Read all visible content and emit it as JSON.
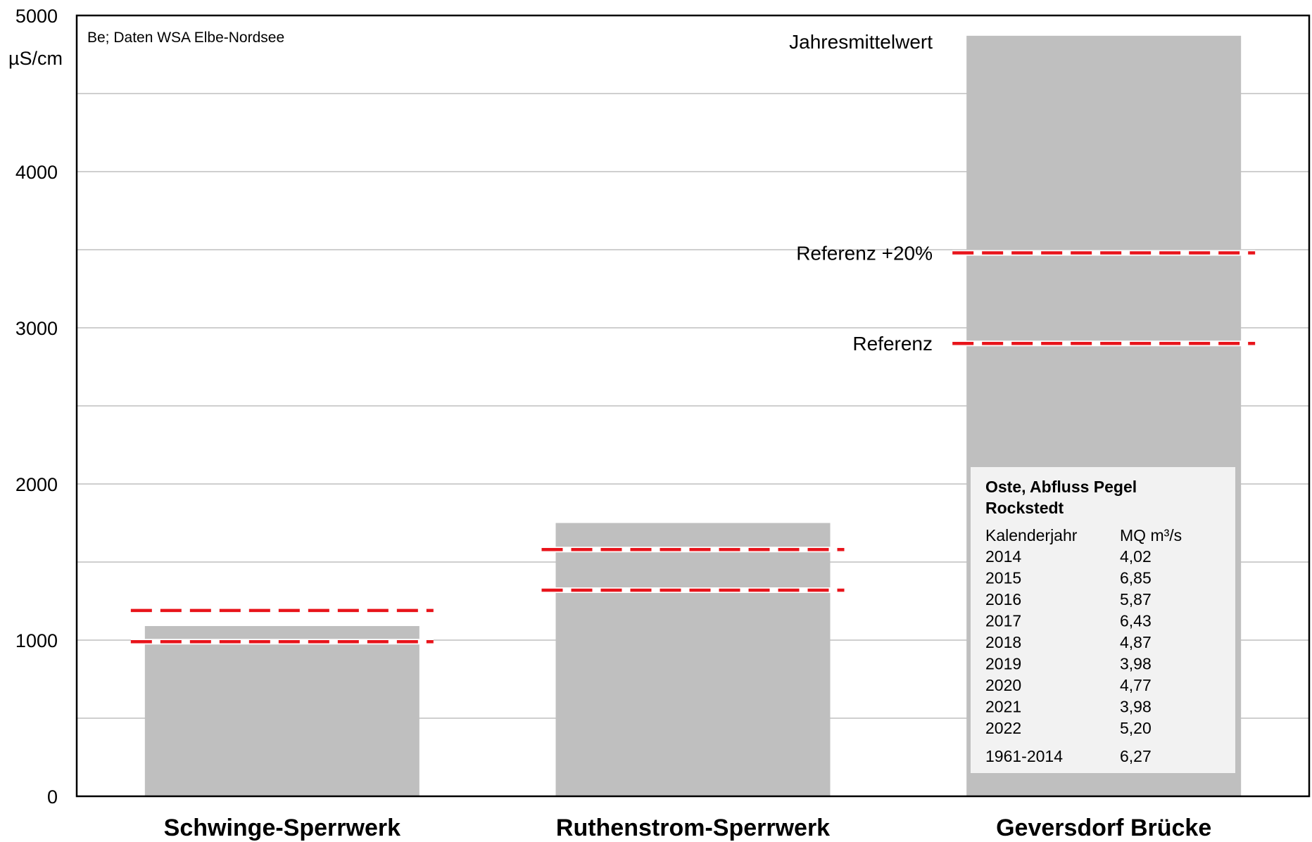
{
  "chart_data": {
    "type": "bar",
    "y_unit": "µS/cm",
    "ylim": [
      0,
      5000
    ],
    "y_ticks": [
      "0",
      "1000",
      "2000",
      "3000",
      "4000",
      "5000"
    ],
    "grid": true,
    "source_note": "Be; Daten WSA Elbe-Nordsee",
    "categories": [
      "Schwinge-Sperrwerk",
      "Ruthenstrom-Sperrwerk",
      "Geversdorf Brücke"
    ],
    "series": [
      {
        "name": "Jahresmittelwert",
        "values": [
          1090,
          1750,
          4870
        ]
      }
    ],
    "reference_lines": [
      {
        "name": "Referenz",
        "values": [
          990,
          1320,
          2900
        ]
      },
      {
        "name": "Referenz +20%",
        "values": [
          1190,
          1580,
          3480
        ]
      }
    ],
    "labels": {
      "series": "Jahresmittelwert",
      "ref": "Referenz",
      "ref20": "Referenz +20%"
    },
    "colors": {
      "bar": "#bfbfbf",
      "reference": "#e8141b",
      "grid": "#bfbfbf",
      "inset_bg": "#f2f2f2"
    }
  },
  "inset_table": {
    "title_line1": "Oste, Abfluss Pegel",
    "title_line2": "Rockstedt",
    "col1_header": "Kalenderjahr",
    "col2_header": "MQ m³/s",
    "rows": [
      {
        "year": "2014",
        "mq": "4,02"
      },
      {
        "year": "2015",
        "mq": "6,85"
      },
      {
        "year": "2016",
        "mq": "5,87"
      },
      {
        "year": "2017",
        "mq": "6,43"
      },
      {
        "year": "2018",
        "mq": "4,87"
      },
      {
        "year": "2019",
        "mq": "3,98"
      },
      {
        "year": "2020",
        "mq": "4,77"
      },
      {
        "year": "2021",
        "mq": "3,98"
      },
      {
        "year": "2022",
        "mq": "5,20"
      }
    ],
    "reference_row": {
      "year": "1961-2014",
      "mq": "6,27"
    }
  }
}
